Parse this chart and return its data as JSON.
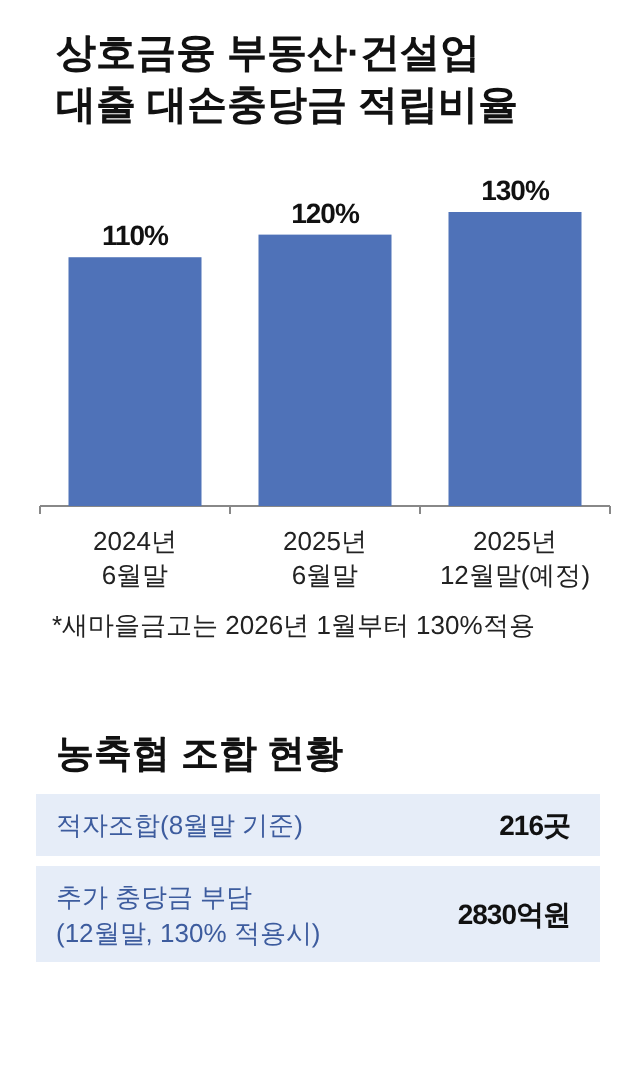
{
  "chart_data": [
    {
      "type": "bar",
      "title": "상호금융 부동산·건설업\n대출 대손충당금 적립비율",
      "categories": [
        "2024년\n6월말",
        "2025년\n6월말",
        "2025년\n12월말(예정)"
      ],
      "values": [
        110,
        120,
        130
      ],
      "value_labels": [
        "110%",
        "120%",
        "130%"
      ],
      "color": "#4f72b8",
      "annotations": [
        "*새마을금고는 2026년 1월부터 130%적용"
      ]
    },
    {
      "type": "other",
      "title": "농축협 조합 현황",
      "annotations": [
        "적자조합(8월말 기준)",
        "216곳",
        "추가 충당금 부담\n(12월말, 130% 적용시)",
        "2830억원"
      ]
    }
  ]
}
